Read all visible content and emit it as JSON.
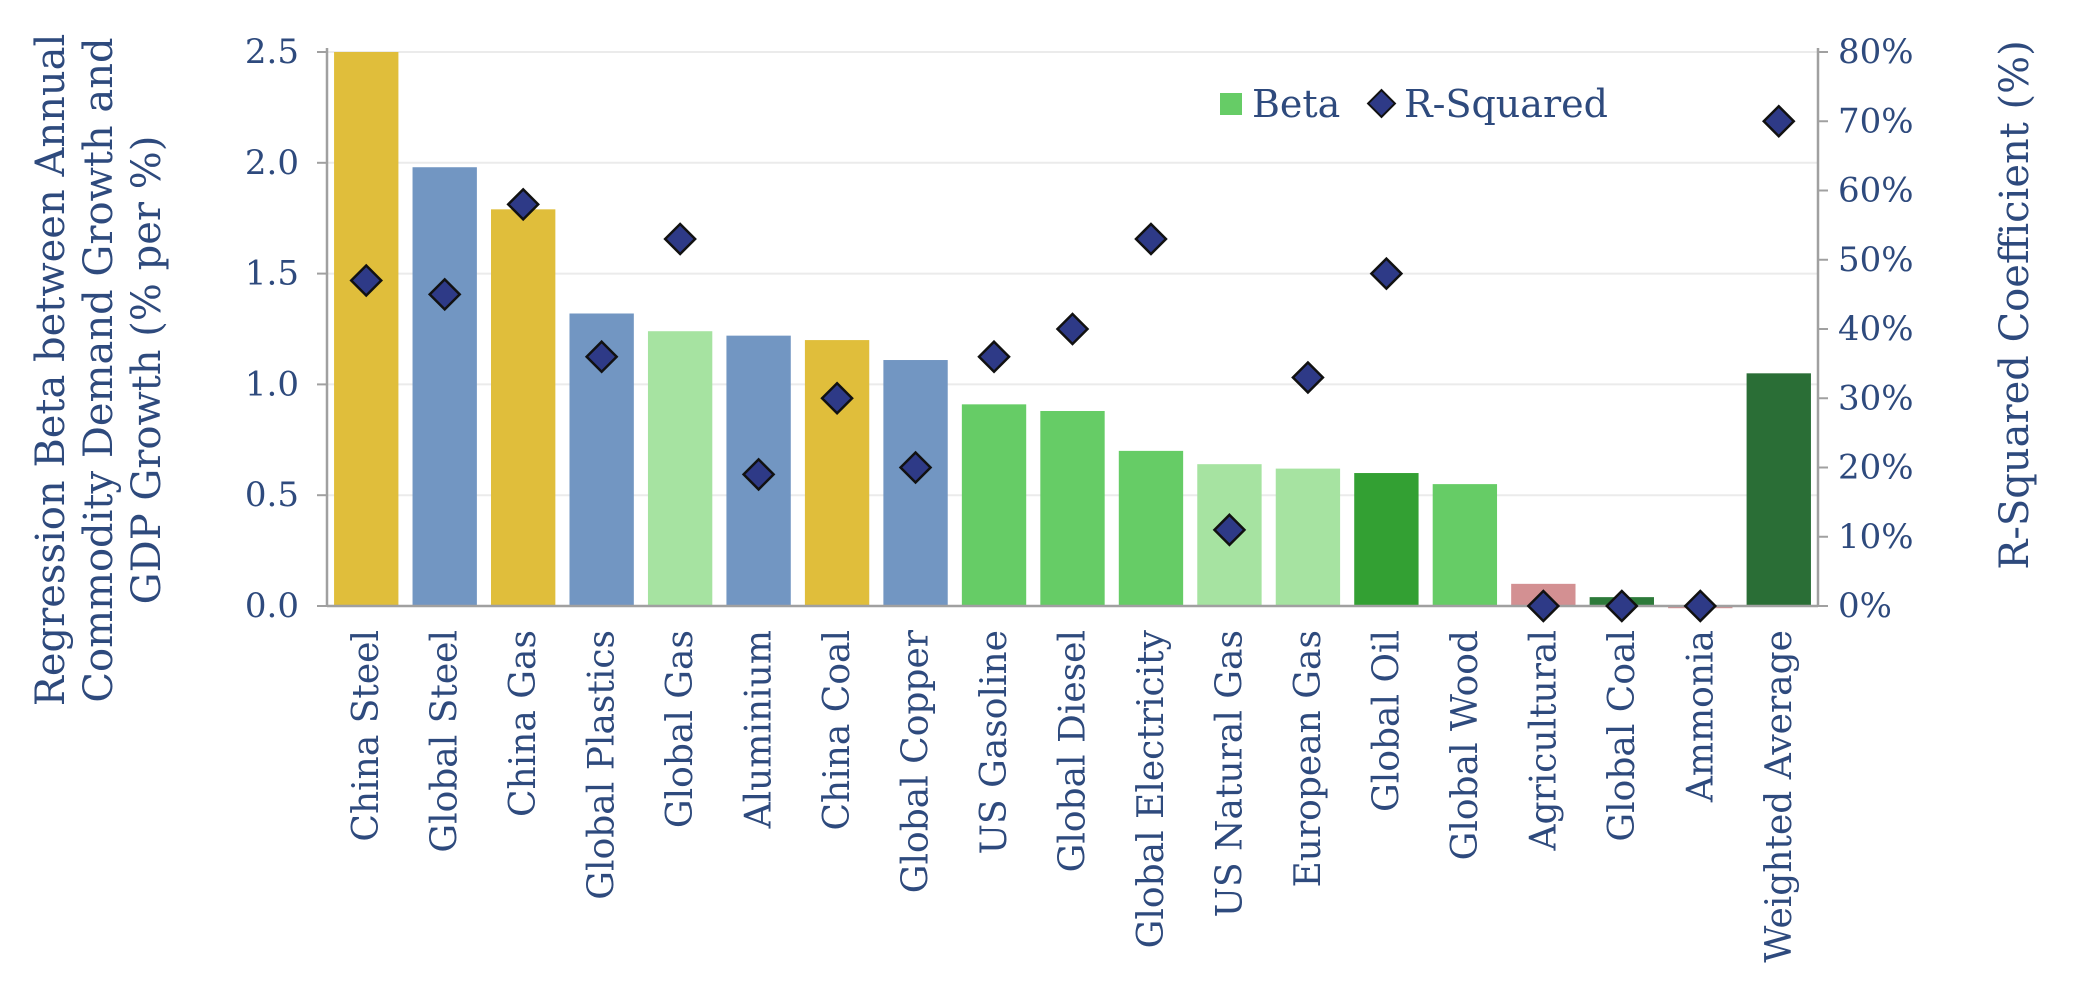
{
  "chart_data": {
    "type": "bar",
    "categories": [
      "China Steel",
      "Global Steel",
      "China Gas",
      "Global Plastics",
      "Global Gas",
      "Aluminium",
      "China Coal",
      "Global Copper",
      "US Gasoline",
      "Global Diesel",
      "Global Electricity",
      "US Natural Gas",
      "European Gas",
      "Global Oil",
      "Global Wood",
      "Agricultural",
      "Global Coal",
      "Ammonia",
      "Weighted Average"
    ],
    "series": [
      {
        "name": "Beta",
        "type": "bar",
        "axis": "left",
        "values": [
          2.5,
          1.98,
          1.79,
          1.32,
          1.24,
          1.22,
          1.2,
          1.11,
          0.91,
          0.88,
          0.7,
          0.64,
          0.62,
          0.6,
          0.55,
          0.1,
          0.04,
          -0.01,
          1.05
        ],
        "colors": [
          "#E0BE3B",
          "#7296C2",
          "#E0BE3B",
          "#7296C2",
          "#A6E3A1",
          "#7296C2",
          "#E0BE3B",
          "#7296C2",
          "#66CC66",
          "#66CC66",
          "#66CC66",
          "#A6E3A1",
          "#A6E3A1",
          "#33A033",
          "#66CC66",
          "#D39092",
          "#2D7A3A",
          "#D39092",
          "#2A6E36"
        ]
      },
      {
        "name": "R-Squared",
        "type": "scatter",
        "axis": "right",
        "values": [
          47,
          45,
          58,
          36,
          53,
          19,
          30,
          20,
          36,
          40,
          53,
          11,
          33,
          48,
          null,
          0,
          0,
          0,
          70
        ],
        "color": "#2E3A87"
      }
    ],
    "ylabel": "Regression Beta between Annual Commodity Demand Growth and GDP Growth (% per %)",
    "ylabel_lines": [
      "Regression Beta between Annual",
      "Commodity Demand Growth and",
      "GDP Growth (% per %)"
    ],
    "y2label": "R-Squared Coefficient (%)",
    "ylim": [
      0,
      2.5
    ],
    "yticks": [
      "0.0",
      "0.5",
      "1.0",
      "1.5",
      "2.0",
      "2.5"
    ],
    "y2lim": [
      0,
      80
    ],
    "y2ticks": [
      "0%",
      "10%",
      "20%",
      "30%",
      "40%",
      "50%",
      "60%",
      "70%",
      "80%"
    ],
    "grid": true,
    "legend": {
      "placement": "top-right",
      "entries": [
        "Beta",
        "R-Squared"
      ],
      "beta_color": "#66CC66",
      "rsq_color": "#2E3A87"
    },
    "colors": {
      "axis_text": "#2E4A7D",
      "grid": "#EBEBEB",
      "axis_line": "#A0A0A0"
    }
  }
}
